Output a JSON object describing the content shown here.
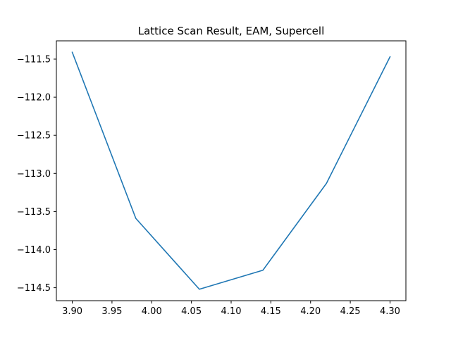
{
  "chart_data": {
    "type": "line",
    "title": "Lattice Scan Result, EAM, Supercell",
    "xlabel": "",
    "ylabel": "",
    "x": [
      3.9,
      3.98,
      4.06,
      4.14,
      4.22,
      4.3
    ],
    "series": [
      {
        "values": [
          -111.41,
          -113.59,
          -114.52,
          -114.27,
          -113.13,
          -111.47
        ],
        "color": "#1f77b4"
      }
    ],
    "xlim": [
      3.88,
      4.32
    ],
    "ylim": [
      -114.67,
      -111.26
    ],
    "xticks": [
      "3.90",
      "3.95",
      "4.00",
      "4.05",
      "4.10",
      "4.15",
      "4.20",
      "4.25",
      "4.30"
    ],
    "yticks": [
      "−111.5",
      "−112.0",
      "−112.5",
      "−113.0",
      "−113.5",
      "−114.0",
      "−114.5"
    ],
    "grid": false,
    "legend": "none"
  }
}
